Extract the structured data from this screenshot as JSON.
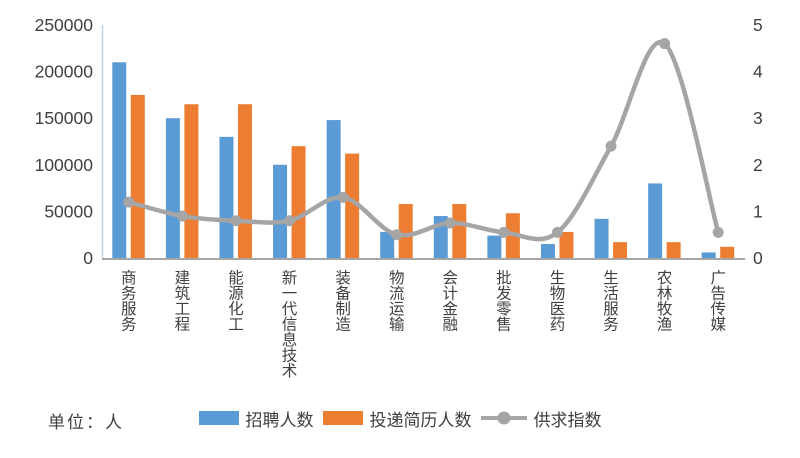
{
  "chart_data": {
    "type": "bar+line",
    "title": "",
    "categories": [
      "商务服务",
      "建筑工程",
      "能源化工",
      "新一代信息技术",
      "装备制造",
      "物流运输",
      "会计金融",
      "批发零售",
      "生物医药",
      "生活服务",
      "农林牧渔",
      "广告传媒"
    ],
    "series": [
      {
        "name": "招聘人数",
        "type": "bar",
        "axis": "left",
        "values": [
          210000,
          150000,
          130000,
          100000,
          148000,
          28000,
          45000,
          24000,
          15000,
          42000,
          80000,
          6000
        ]
      },
      {
        "name": "投递简历人数",
        "type": "bar",
        "axis": "left",
        "values": [
          175000,
          165000,
          165000,
          120000,
          112000,
          58000,
          58000,
          48000,
          28000,
          17000,
          17000,
          12000
        ]
      },
      {
        "name": "供求指数",
        "type": "line",
        "axis": "right",
        "values": [
          1.2,
          0.9,
          0.8,
          0.8,
          1.3,
          0.5,
          0.75,
          0.55,
          0.55,
          2.4,
          4.6,
          0.55
        ]
      }
    ],
    "left_axis": {
      "min": 0,
      "max": 250000,
      "tick_labels": [
        "0",
        "50000",
        "100000",
        "150000",
        "200000",
        "250000"
      ],
      "tick_values": [
        0,
        50000,
        100000,
        150000,
        200000,
        250000
      ]
    },
    "right_axis": {
      "min": 0,
      "max": 5,
      "tick_labels": [
        "0",
        "1",
        "2",
        "3",
        "4",
        "5"
      ],
      "tick_values": [
        0,
        1,
        2,
        3,
        4,
        5
      ]
    },
    "grid": false,
    "legend_position": "bottom"
  },
  "legend": [
    {
      "label": "招聘人数"
    },
    {
      "label": "投递简历人数"
    },
    {
      "label": "供求指数"
    }
  ],
  "footnote": "单位：人",
  "colors": {
    "bar_recruit": "#5B9BD5",
    "bar_resume": "#ED7D31",
    "line_index": "#A5A5A5",
    "axis_text": "#404040",
    "left_axis_line": "#BDD7EE",
    "baseline": "#A6A6A6"
  }
}
